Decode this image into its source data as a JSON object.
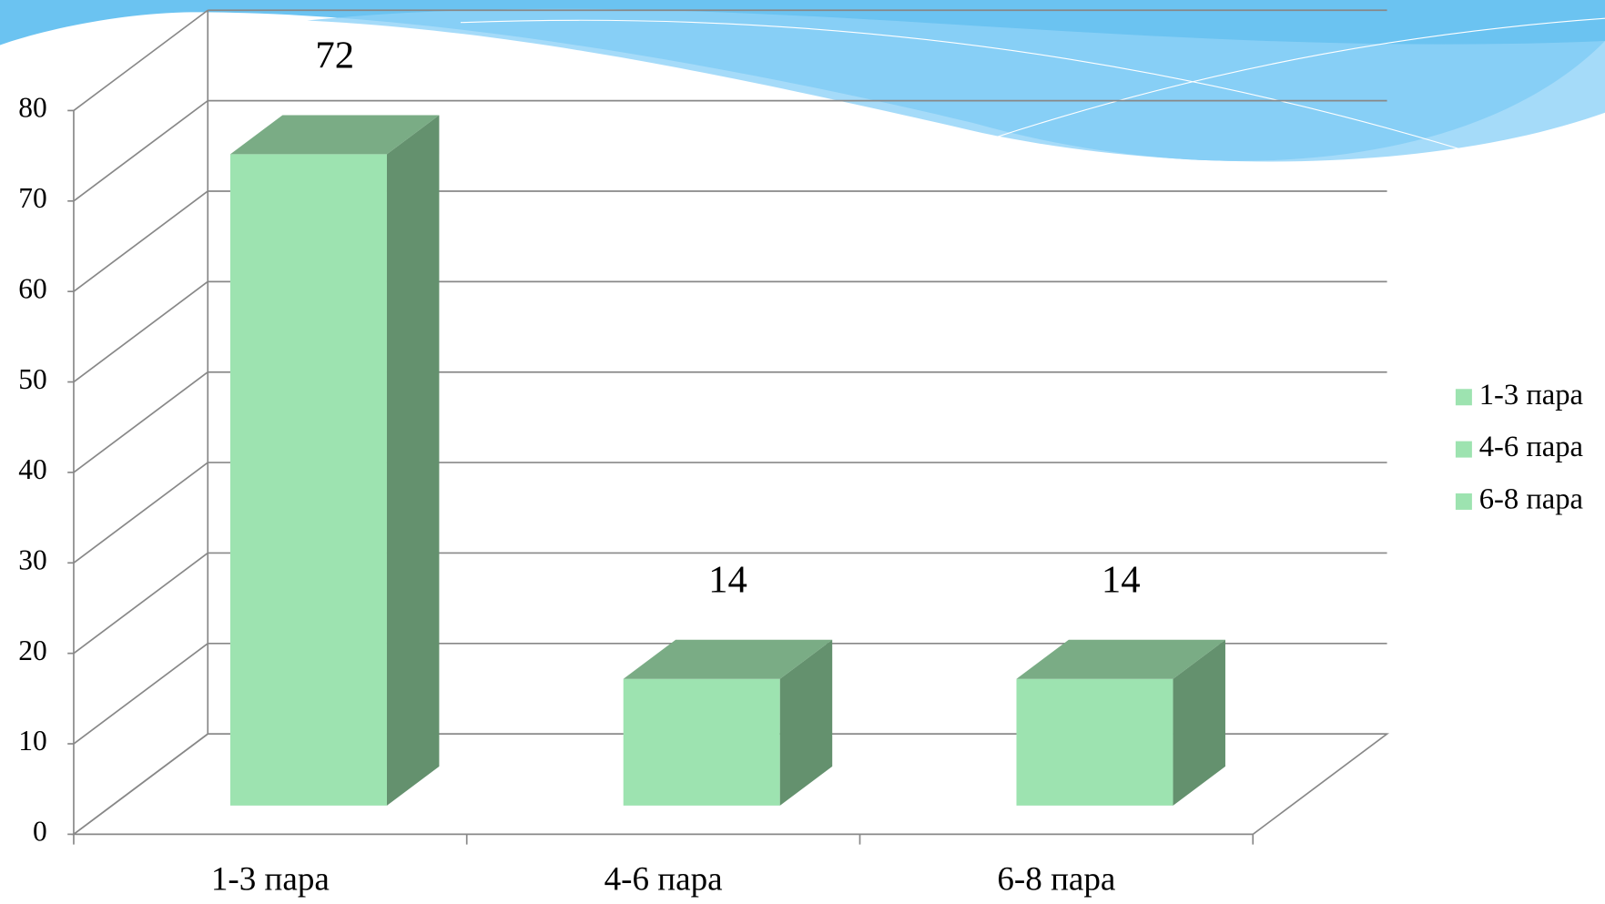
{
  "chart_data": {
    "type": "bar3d",
    "categories": [
      "1-3 пара",
      "4-6 пара",
      "6-8 пара"
    ],
    "values": [
      72,
      14,
      14
    ],
    "color": "#9de3b0",
    "ylim": [
      0,
      80
    ],
    "yticks": [
      0,
      10,
      20,
      30,
      40,
      50,
      60,
      70,
      80
    ],
    "grid": true,
    "legend": "right"
  }
}
